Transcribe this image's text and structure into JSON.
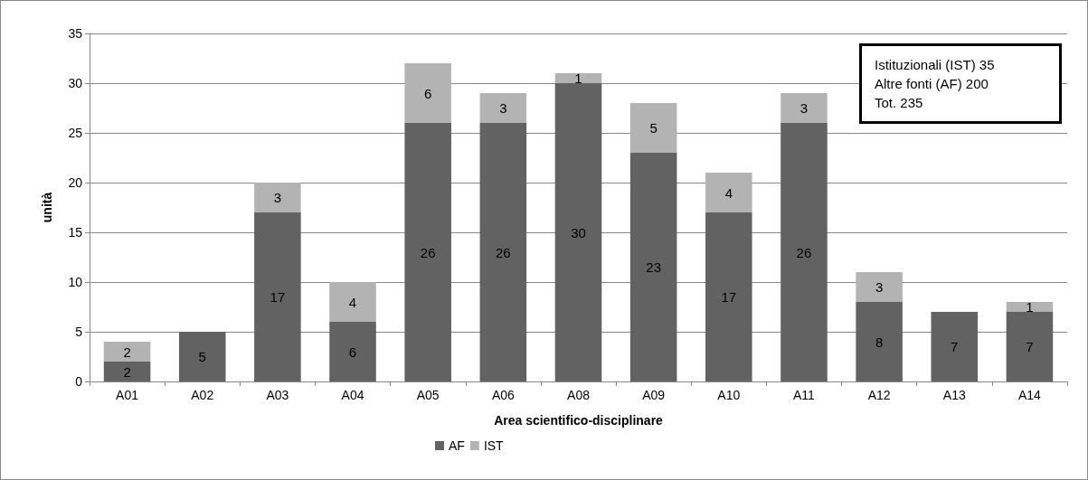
{
  "chart_data": {
    "type": "bar",
    "stacked": true,
    "xlabel": "Area scientifico-disciplinare",
    "ylabel": "unità",
    "categories": [
      "A01",
      "A02",
      "A03",
      "A04",
      "A05",
      "A06",
      "A08",
      "A09",
      "A10",
      "A11",
      "A12",
      "A13",
      "A14"
    ],
    "series": [
      {
        "name": "AF",
        "color": "#626262",
        "values": [
          2,
          5,
          17,
          6,
          26,
          26,
          30,
          23,
          17,
          26,
          8,
          7,
          7
        ]
      },
      {
        "name": "IST",
        "color": "#b3b3b3",
        "values": [
          2,
          null,
          3,
          4,
          6,
          3,
          1,
          5,
          4,
          3,
          3,
          null,
          1
        ]
      }
    ],
    "ylim": [
      0,
      35
    ],
    "yticks": [
      0,
      5,
      10,
      15,
      20,
      25,
      30,
      35
    ],
    "grid": "y",
    "legend": "bottom",
    "data_labels": true,
    "annotations": [
      "Istituzionali (IST)  35",
      "Altre fonti (AF)  200",
      "Tot.  235"
    ]
  }
}
